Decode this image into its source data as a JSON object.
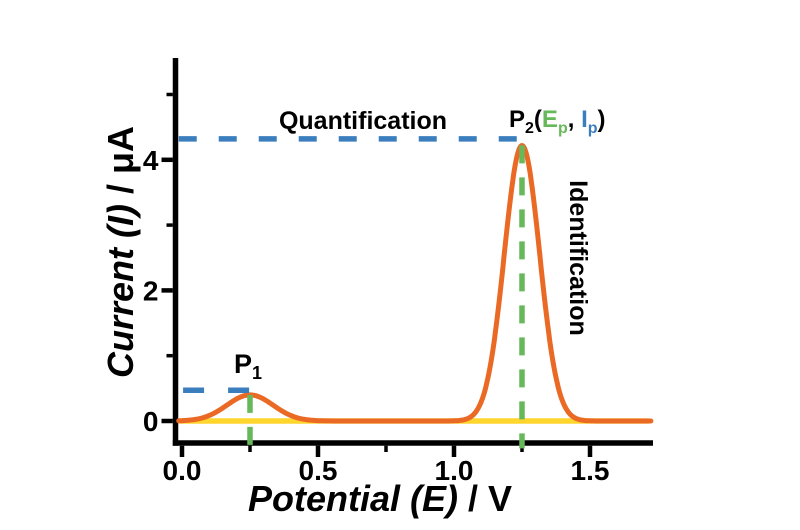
{
  "figure": {
    "background": "#ffffff"
  },
  "chart_data": {
    "type": "line",
    "title": "",
    "xlabel_italic": "Potential (E)",
    "xlabel_plain": " / V",
    "ylabel_italic": "Current (I)",
    "ylabel_plain": " / μA",
    "xlim": [
      -0.02,
      1.73
    ],
    "ylim": [
      -0.35,
      5.55
    ],
    "grid": false,
    "x_major_ticks": [
      {
        "v": 0.0,
        "label": "0.0"
      },
      {
        "v": 0.5,
        "label": "0.5"
      },
      {
        "v": 1.0,
        "label": "1.0"
      },
      {
        "v": 1.5,
        "label": "1.5"
      }
    ],
    "x_minor_ticks": [
      0.25,
      0.75,
      1.25
    ],
    "y_major_ticks": [
      {
        "v": 0,
        "label": "0"
      },
      {
        "v": 2,
        "label": "2"
      },
      {
        "v": 4,
        "label": "4"
      }
    ],
    "y_minor_ticks": [
      1,
      3,
      5
    ],
    "series": [
      {
        "name": "baseline",
        "color_key": "yellow",
        "y": 0,
        "V_from": -0.007,
        "V_to": 1.713
      },
      {
        "name": "voltammogram-signal",
        "color_key": "orange",
        "V_from": -0.012,
        "V_to": 1.727,
        "peaks": [
          {
            "name": "P1",
            "E_p": 0.25,
            "I_p": 0.4,
            "sigma": 0.085
          },
          {
            "name": "P2",
            "E_p": 1.25,
            "I_p": 4.22,
            "sigma": 0.065
          }
        ]
      }
    ],
    "guides": {
      "quantification_line_p2": {
        "I": 4.32,
        "V_from": -0.012,
        "V_to": 1.255
      },
      "quantification_line_p1": {
        "I": 0.47,
        "V_from": 0.004,
        "V_to": 0.285
      },
      "identification_line_p1": {
        "V": 0.25,
        "I_from": 0.4,
        "I_to": -0.42
      },
      "identification_line_p2": {
        "V": 1.25,
        "I_from": 4.22,
        "I_to": -0.42
      }
    },
    "annotations": {
      "quantification": {
        "text": "Quantification"
      },
      "identification": {
        "text": "Identification"
      },
      "p1": {
        "p": "P",
        "sub": "1"
      },
      "p2": {
        "p": "P",
        "sub": "2",
        "open": "(",
        "e": "E",
        "e_sub": "p",
        "comma": ", ",
        "i": "I",
        "i_sub": "p",
        "close": ")"
      }
    },
    "colors": {
      "axis": "#000000",
      "orange": "#EA6A25",
      "yellow": "#FFD52E",
      "blue": "#3B7EBE",
      "green": "#67B85A"
    }
  }
}
